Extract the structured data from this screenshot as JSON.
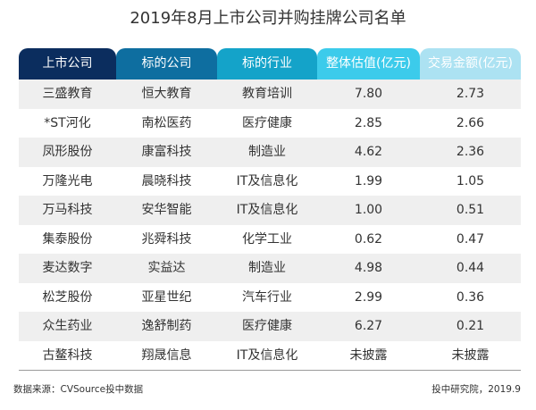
{
  "title": "2019年8月上市公司并购挂牌公司名单",
  "colors": {
    "header": [
      "#0b2d5e",
      "#0e6ea0",
      "#14a3c9",
      "#3ccbeb",
      "#ace2f2"
    ],
    "row_band": "#efefef",
    "row_plain": "#ffffff",
    "text": "#333333",
    "rule": "#9a9a9a"
  },
  "table": {
    "headers": [
      "上市公司",
      "标的公司",
      "标的行业",
      "整体估值(亿元)",
      "交易金额(亿元)"
    ],
    "rows": [
      [
        "三盛教育",
        "恒大教育",
        "教育培训",
        "7.80",
        "2.73"
      ],
      [
        "*ST河化",
        "南松医药",
        "医疗健康",
        "2.85",
        "2.66"
      ],
      [
        "凤形股份",
        "康富科技",
        "制造业",
        "4.62",
        "2.36"
      ],
      [
        "万隆光电",
        "晨晓科技",
        "IT及信息化",
        "1.99",
        "1.05"
      ],
      [
        "万马科技",
        "安华智能",
        "IT及信息化",
        "1.00",
        "0.51"
      ],
      [
        "集泰股份",
        "兆舜科技",
        "化学工业",
        "0.62",
        "0.47"
      ],
      [
        "麦达数字",
        "实益达",
        "制造业",
        "4.98",
        "0.44"
      ],
      [
        "松芝股份",
        "亚星世纪",
        "汽车行业",
        "2.99",
        "0.36"
      ],
      [
        "众生药业",
        "逸舒制药",
        "医疗健康",
        "6.27",
        "0.21"
      ],
      [
        "古鳌科技",
        "翔晟信息",
        "IT及信息化",
        "未披露",
        "未披露"
      ]
    ]
  },
  "footer": {
    "source": "数据来源：CVSource投中数据",
    "credit": "投中研究院，2019.9"
  }
}
